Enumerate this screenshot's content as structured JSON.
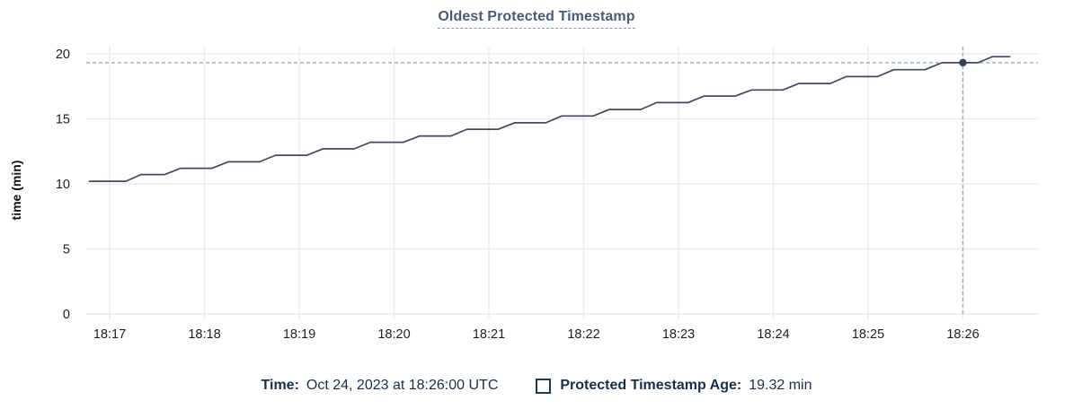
{
  "chart_data": {
    "type": "line",
    "title": "Oldest Protected Timestamp",
    "xlabel": "",
    "ylabel": "time (min)",
    "ylim": [
      0,
      20
    ],
    "yticks": [
      0,
      5,
      10,
      15,
      20
    ],
    "xticks": [
      {
        "x": 1,
        "label": "18:17"
      },
      {
        "x": 2,
        "label": "18:18"
      },
      {
        "x": 3,
        "label": "18:19"
      },
      {
        "x": 4,
        "label": "18:20"
      },
      {
        "x": 5,
        "label": "18:21"
      },
      {
        "x": 6,
        "label": "18:22"
      },
      {
        "x": 7,
        "label": "18:23"
      },
      {
        "x": 8,
        "label": "18:24"
      },
      {
        "x": 9,
        "label": "18:25"
      },
      {
        "x": 10,
        "label": "18:26"
      }
    ],
    "x_axis_note": "x values are minutes after 18:16:00 UTC",
    "grid": true,
    "legend_position": "bottom",
    "series": [
      {
        "name": "Protected Timestamp Age",
        "points": [
          [
            0.78,
            10.2
          ],
          [
            1.17,
            10.2
          ],
          [
            1.33,
            10.72
          ],
          [
            1.58,
            10.72
          ],
          [
            1.75,
            11.2
          ],
          [
            2.08,
            11.2
          ],
          [
            2.25,
            11.7
          ],
          [
            2.58,
            11.7
          ],
          [
            2.75,
            12.2
          ],
          [
            3.08,
            12.2
          ],
          [
            3.25,
            12.7
          ],
          [
            3.58,
            12.7
          ],
          [
            3.75,
            13.2
          ],
          [
            4.1,
            13.2
          ],
          [
            4.27,
            13.68
          ],
          [
            4.6,
            13.68
          ],
          [
            4.77,
            14.2
          ],
          [
            5.1,
            14.2
          ],
          [
            5.27,
            14.7
          ],
          [
            5.6,
            14.7
          ],
          [
            5.77,
            15.22
          ],
          [
            6.1,
            15.22
          ],
          [
            6.27,
            15.72
          ],
          [
            6.6,
            15.72
          ],
          [
            6.77,
            16.25
          ],
          [
            7.1,
            16.25
          ],
          [
            7.27,
            16.75
          ],
          [
            7.6,
            16.75
          ],
          [
            7.77,
            17.22
          ],
          [
            8.1,
            17.22
          ],
          [
            8.27,
            17.72
          ],
          [
            8.6,
            17.72
          ],
          [
            8.77,
            18.25
          ],
          [
            9.1,
            18.25
          ],
          [
            9.27,
            18.78
          ],
          [
            9.6,
            18.78
          ],
          [
            9.78,
            19.32
          ],
          [
            10.16,
            19.32
          ],
          [
            10.31,
            19.78
          ],
          [
            10.5,
            19.78
          ]
        ]
      }
    ],
    "hover_point": {
      "x": 10.0,
      "y": 19.32
    }
  },
  "legend": {
    "time_key": "Time:",
    "time_value": "Oct 24, 2023 at 18:26:00 UTC",
    "series_key": "Protected Timestamp Age:",
    "series_value": "19.32 min"
  },
  "colors": {
    "line": "#3e4a5e",
    "dot": "#324158",
    "crosshair": "#9fb1bf",
    "grid": "#ececec",
    "title_text": "#4a5b76",
    "legend_text": "#16304c",
    "axis_text": "#1f1f1f"
  }
}
